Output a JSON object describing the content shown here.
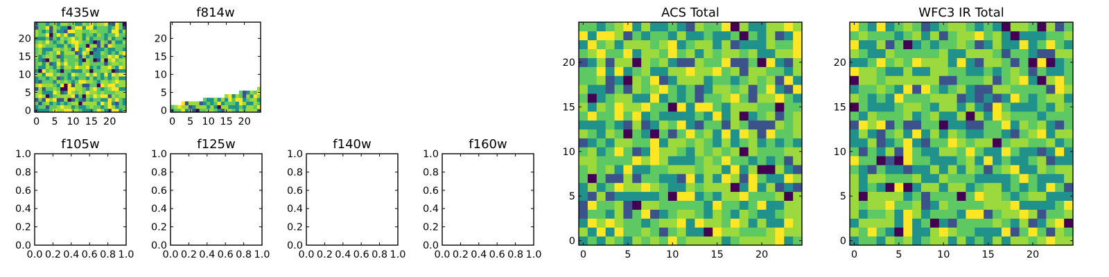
{
  "colormap": [
    "#440154",
    "#3b528b",
    "#21918c",
    "#5ec962",
    "#9bd93c",
    "#fde725"
  ],
  "chart_data": [
    {
      "type": "heatmap",
      "title": "f435w",
      "xticks": [
        "0",
        "5",
        "10",
        "15",
        "20"
      ],
      "yticks": [
        "0",
        "5",
        "10",
        "15",
        "20"
      ],
      "xlim": [
        -0.5,
        24.5
      ],
      "ylim": [
        -0.5,
        24.5
      ],
      "grid": "25x25",
      "fill": "full",
      "cmap": "viridis",
      "seed": 11
    },
    {
      "type": "heatmap",
      "title": "f814w",
      "xticks": [
        "0",
        "5",
        "10",
        "15",
        "20"
      ],
      "yticks": [
        "0",
        "5",
        "10",
        "15",
        "20"
      ],
      "xlim": [
        -0.5,
        24.5
      ],
      "ylim": [
        -0.5,
        24.5
      ],
      "grid": "25x25",
      "fill": "partial",
      "fill_rows_by_column": [
        2,
        2,
        2,
        3,
        3,
        3,
        3,
        3,
        3,
        4,
        4,
        4,
        4,
        4,
        4,
        5,
        5,
        5,
        5,
        6,
        6,
        6,
        6,
        6,
        7
      ],
      "cmap": "viridis",
      "seed": 23
    },
    {
      "type": "empty",
      "title": "f105w",
      "xticks": [
        "0.0",
        "0.2",
        "0.4",
        "0.6",
        "0.8",
        "1.0"
      ],
      "yticks": [
        "0.0",
        "0.2",
        "0.4",
        "0.6",
        "0.8",
        "1.0"
      ],
      "xlim": [
        0,
        1
      ],
      "ylim": [
        0,
        1
      ]
    },
    {
      "type": "empty",
      "title": "f125w",
      "xticks": [
        "0.0",
        "0.2",
        "0.4",
        "0.6",
        "0.8",
        "1.0"
      ],
      "yticks": [
        "0.0",
        "0.2",
        "0.4",
        "0.6",
        "0.8",
        "1.0"
      ],
      "xlim": [
        0,
        1
      ],
      "ylim": [
        0,
        1
      ]
    },
    {
      "type": "empty",
      "title": "f140w",
      "xticks": [
        "0.0",
        "0.2",
        "0.4",
        "0.6",
        "0.8",
        "1.0"
      ],
      "yticks": [
        "0.0",
        "0.2",
        "0.4",
        "0.6",
        "0.8",
        "1.0"
      ],
      "xlim": [
        0,
        1
      ],
      "ylim": [
        0,
        1
      ]
    },
    {
      "type": "empty",
      "title": "f160w",
      "xticks": [
        "0.0",
        "0.2",
        "0.4",
        "0.6",
        "0.8",
        "1.0"
      ],
      "yticks": [
        "0.0",
        "0.2",
        "0.4",
        "0.6",
        "0.8",
        "1.0"
      ],
      "xlim": [
        0,
        1
      ],
      "ylim": [
        0,
        1
      ]
    },
    {
      "type": "heatmap",
      "title": "ACS Total",
      "xticks": [
        "0",
        "5",
        "10",
        "15",
        "20"
      ],
      "yticks": [
        "0",
        "5",
        "10",
        "15",
        "20"
      ],
      "xlim": [
        -0.5,
        24.5
      ],
      "ylim": [
        -0.5,
        24.5
      ],
      "grid": "25x25",
      "fill": "full",
      "cmap": "viridis",
      "seed": 37
    },
    {
      "type": "heatmap",
      "title": "WFC3 IR Total",
      "xticks": [
        "0",
        "5",
        "10",
        "15",
        "20"
      ],
      "yticks": [
        "0",
        "5",
        "10",
        "15",
        "20"
      ],
      "xlim": [
        -0.5,
        24.5
      ],
      "ylim": [
        -0.5,
        24.5
      ],
      "grid": "25x25",
      "fill": "full",
      "cmap": "viridis",
      "seed": 59
    }
  ]
}
